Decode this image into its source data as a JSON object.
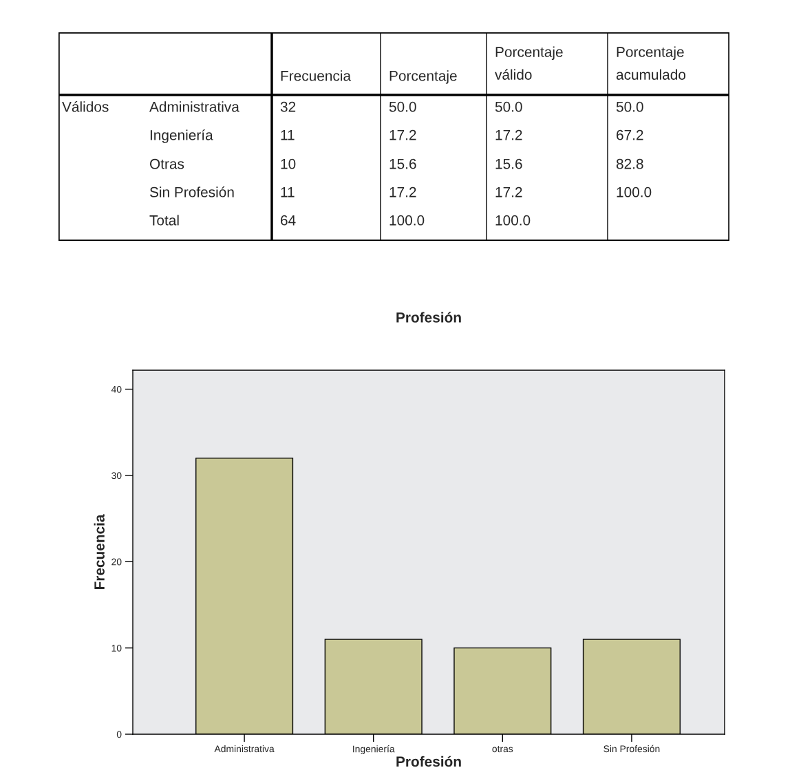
{
  "chart_data": [
    {
      "type": "other",
      "annotations": [
        "Frecuencia",
        "Porcentaje",
        "Porcentaje válido",
        "Porcentaje acumulado",
        "Válidos",
        "Administrativa",
        "32",
        "50.0",
        "50.0",
        "50.0",
        "Ingeniería",
        "11",
        "17.2",
        "17.2",
        "67.2",
        "Otras",
        "10",
        "15.6",
        "15.6",
        "82.8",
        "Sin Profesión",
        "11",
        "17.2",
        "17.2",
        "100.0",
        "Total",
        "64",
        "100.0",
        "100.0"
      ]
    },
    {
      "type": "bar",
      "title": "Profesión",
      "xlabel": "Profesión",
      "ylabel": "Frecuencia",
      "categories": [
        "Administrativa",
        "Ingeniería",
        "otras",
        "Sin Profesión"
      ],
      "values": [
        32,
        11,
        10,
        11
      ],
      "color": "#c9c896",
      "ylim": [
        0,
        42.2
      ],
      "yticks": [
        0,
        10,
        20,
        30,
        40
      ],
      "grid": false,
      "legend": false
    }
  ]
}
